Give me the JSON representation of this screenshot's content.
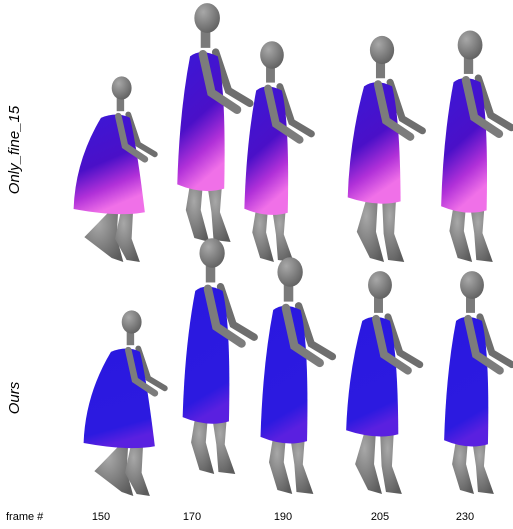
{
  "row_labels": [
    "Only_fine_15",
    "Ours"
  ],
  "footer": {
    "label": "frame #",
    "frames": [
      150,
      170,
      190,
      205,
      230
    ]
  }
}
